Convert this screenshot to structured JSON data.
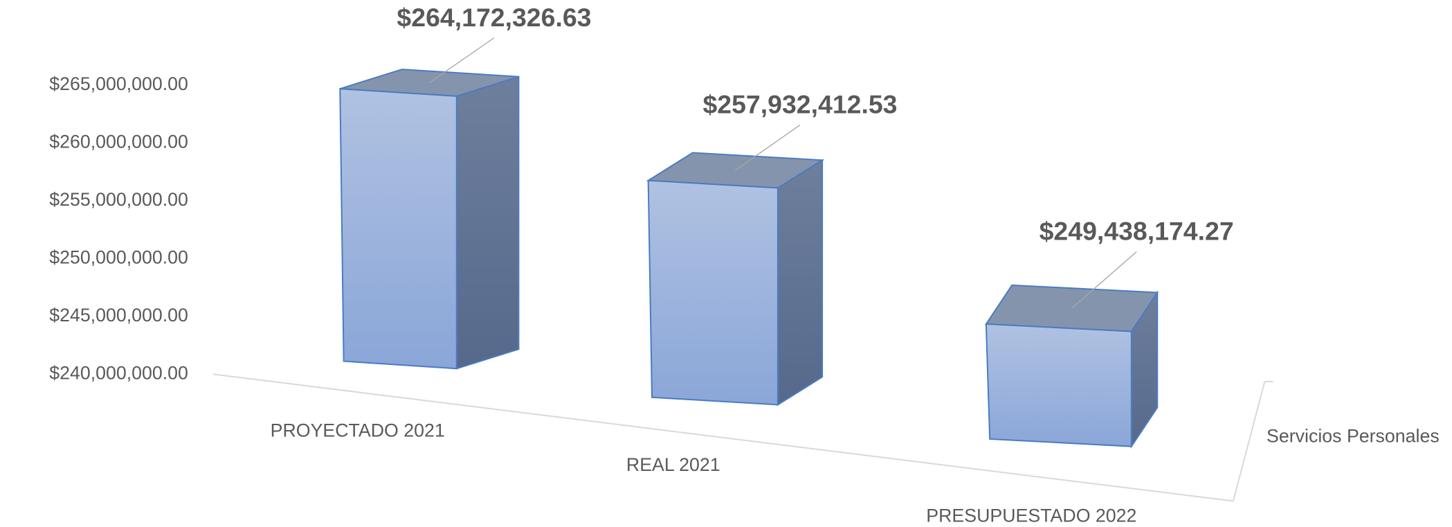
{
  "chart_data": {
    "type": "bar3d",
    "categories": [
      "PROYECTADO 2021",
      "REAL 2021",
      "PRESUPUESTADO 2022"
    ],
    "series": [
      {
        "name": "Servicios Personales",
        "color": "#8faadc",
        "values": [
          264172326.63,
          257932412.53,
          249438174.27
        ],
        "value_labels": [
          "$264,172,326.63",
          "$257,932,412.53",
          "$249,438,174.27"
        ]
      }
    ],
    "ylim": [
      240000000,
      265000000
    ],
    "yticks": [
      {
        "value": 240000000,
        "label": "$240,000,000.00"
      },
      {
        "value": 245000000,
        "label": "$245,000,000.00"
      },
      {
        "value": 250000000,
        "label": "$250,000,000.00"
      },
      {
        "value": 255000000,
        "label": "$255,000,000.00"
      },
      {
        "value": 260000000,
        "label": "$260,000,000.00"
      },
      {
        "value": 265000000,
        "label": "$265,000,000.00"
      }
    ],
    "grid": false
  }
}
